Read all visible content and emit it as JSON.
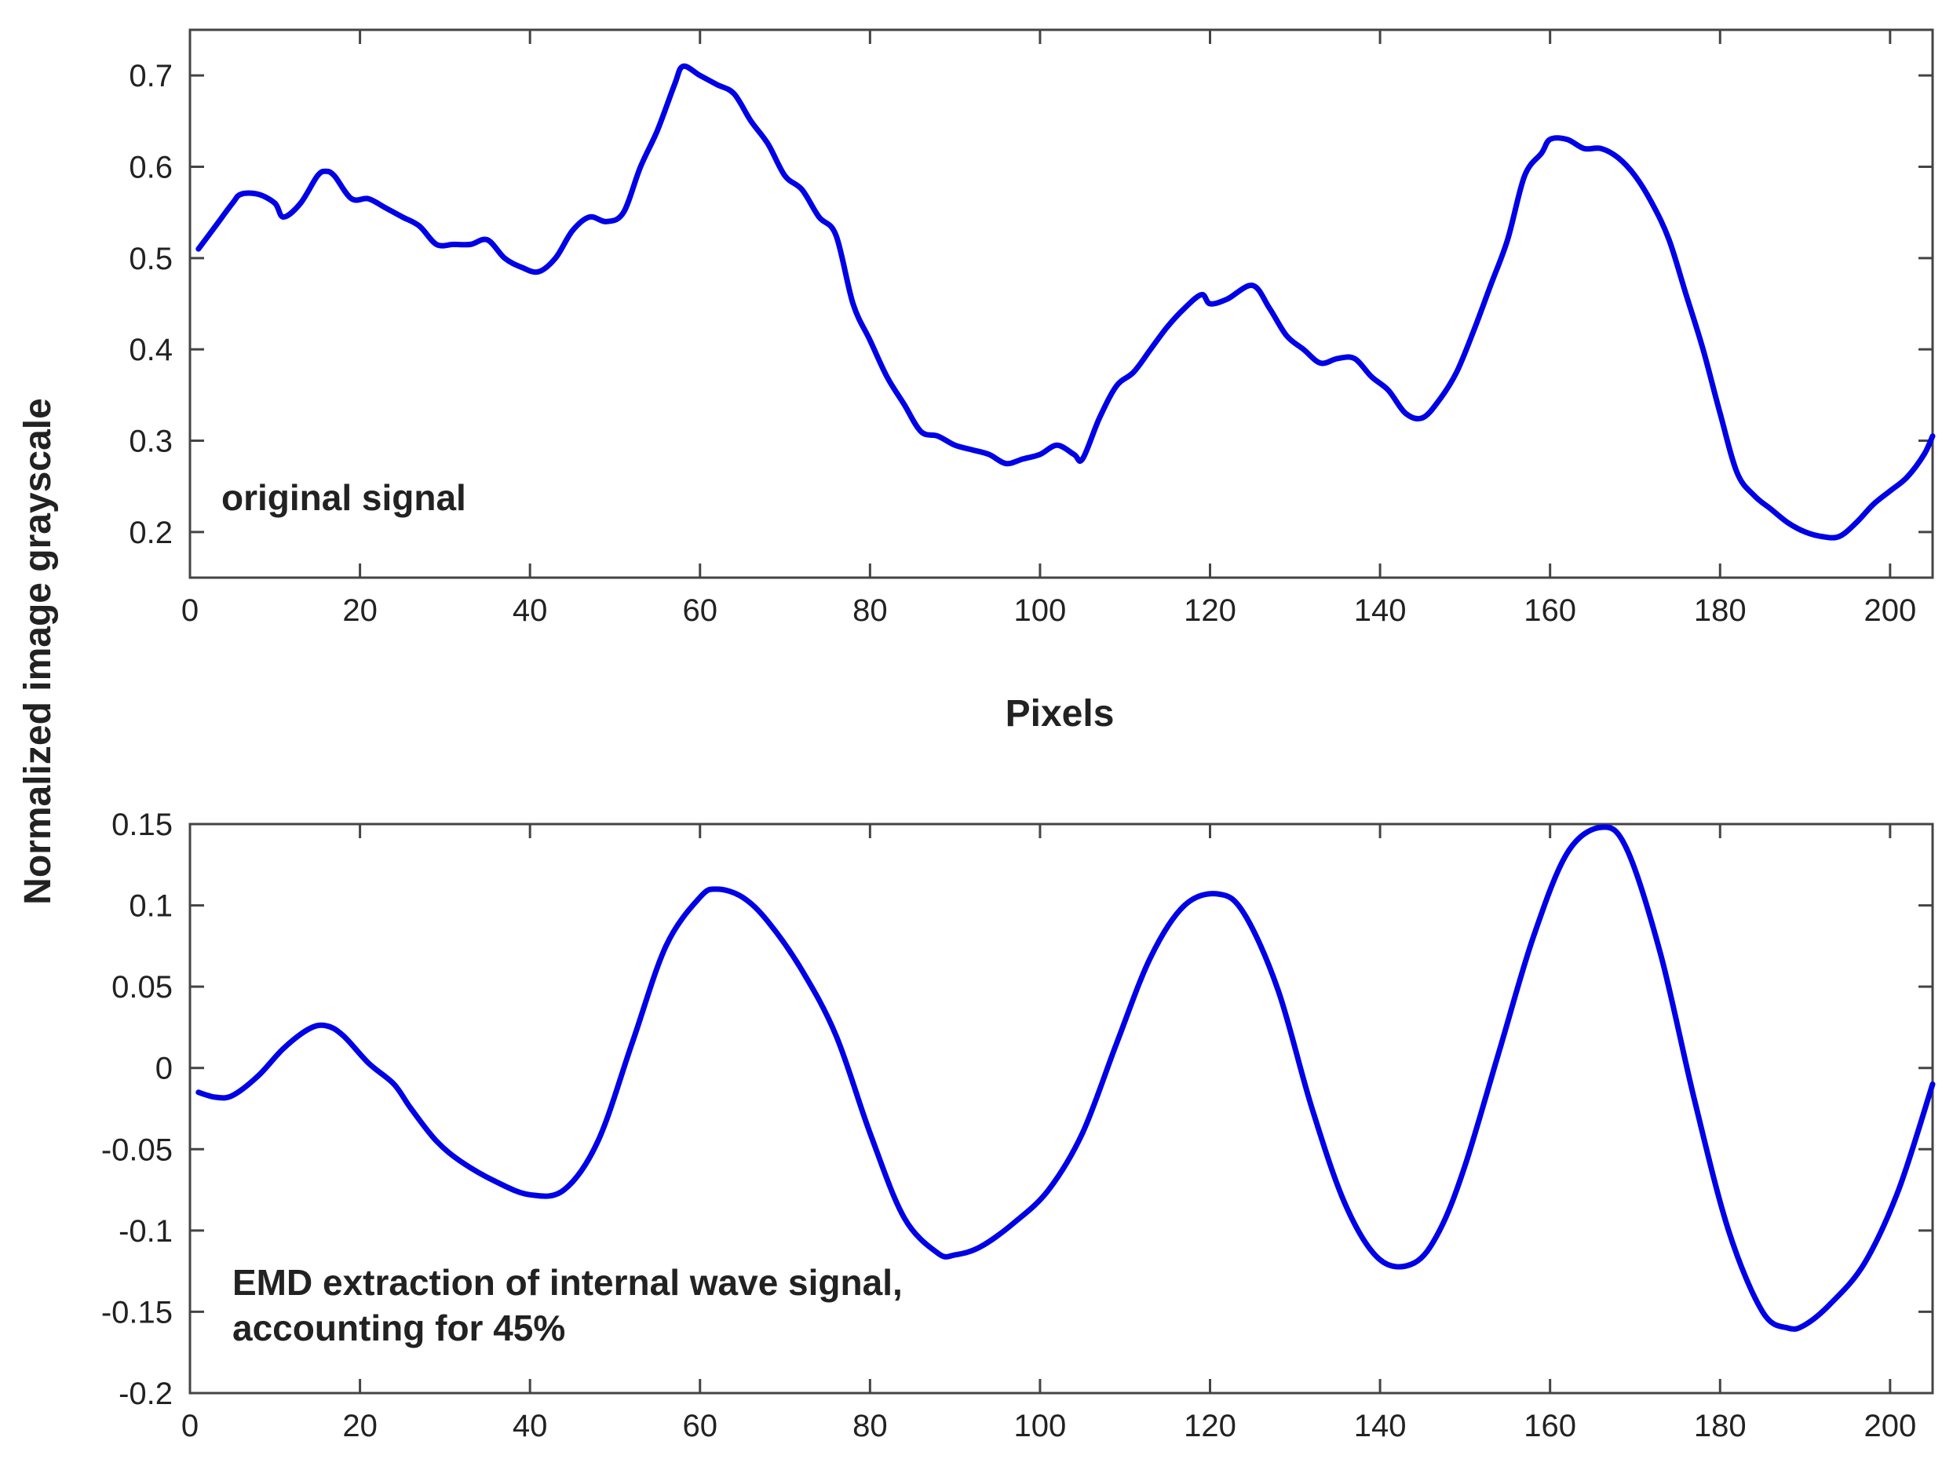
{
  "figure": {
    "ylabel": "Normalized image grayscale",
    "xlabel": "Pixels",
    "line_color": "#0000e6",
    "axis_color": "#444444"
  },
  "chart_data": [
    {
      "type": "line",
      "annotation": [
        "original signal"
      ],
      "xlim": [
        0,
        205
      ],
      "ylim": [
        0.15,
        0.75
      ],
      "xticks": [
        0,
        20,
        40,
        60,
        80,
        100,
        120,
        140,
        160,
        180,
        200
      ],
      "yticks": [
        0.2,
        0.3,
        0.4,
        0.5,
        0.6,
        0.7
      ],
      "ytick_labels": [
        "0.2",
        "0.3",
        "0.4",
        "0.5",
        "0.6",
        "0.7"
      ],
      "x": [
        1,
        3,
        5,
        6,
        8,
        10,
        11,
        13,
        15,
        16,
        17,
        19,
        21,
        23,
        25,
        27,
        29,
        31,
        33,
        35,
        37,
        39,
        41,
        43,
        45,
        47,
        49,
        51,
        53,
        55,
        57,
        58,
        60,
        62,
        64,
        66,
        68,
        70,
        72,
        74,
        76,
        78,
        80,
        82,
        84,
        86,
        88,
        90,
        92,
        94,
        96,
        98,
        100,
        102,
        104,
        105,
        107,
        109,
        111,
        113,
        115,
        117,
        119,
        120,
        122,
        125,
        127,
        129,
        131,
        133,
        135,
        137,
        139,
        141,
        143,
        145,
        147,
        149,
        151,
        153,
        155,
        157,
        159,
        160,
        162,
        164,
        166,
        168,
        170,
        172,
        174,
        176,
        178,
        180,
        182,
        184,
        186,
        188,
        190,
        192,
        194,
        196,
        198,
        200,
        202,
        204,
        205
      ],
      "y": [
        0.51,
        0.535,
        0.56,
        0.57,
        0.57,
        0.56,
        0.545,
        0.56,
        0.59,
        0.595,
        0.59,
        0.565,
        0.565,
        0.555,
        0.545,
        0.535,
        0.515,
        0.515,
        0.515,
        0.52,
        0.5,
        0.49,
        0.485,
        0.5,
        0.53,
        0.545,
        0.54,
        0.55,
        0.6,
        0.64,
        0.69,
        0.71,
        0.7,
        0.69,
        0.68,
        0.65,
        0.625,
        0.59,
        0.575,
        0.545,
        0.525,
        0.45,
        0.41,
        0.37,
        0.34,
        0.31,
        0.305,
        0.295,
        0.29,
        0.285,
        0.275,
        0.28,
        0.285,
        0.295,
        0.285,
        0.28,
        0.325,
        0.36,
        0.375,
        0.4,
        0.425,
        0.445,
        0.46,
        0.45,
        0.455,
        0.47,
        0.445,
        0.415,
        0.4,
        0.385,
        0.39,
        0.39,
        0.37,
        0.355,
        0.33,
        0.325,
        0.345,
        0.375,
        0.42,
        0.47,
        0.52,
        0.59,
        0.615,
        0.63,
        0.63,
        0.62,
        0.62,
        0.61,
        0.59,
        0.56,
        0.52,
        0.46,
        0.4,
        0.33,
        0.265,
        0.24,
        0.225,
        0.21,
        0.2,
        0.195,
        0.195,
        0.21,
        0.23,
        0.245,
        0.26,
        0.285,
        0.305
      ]
    },
    {
      "type": "line",
      "annotation": [
        "EMD extraction of internal wave signal,",
        "accounting for 45%"
      ],
      "xlim": [
        0,
        205
      ],
      "ylim": [
        -0.2,
        0.15
      ],
      "xticks": [
        0,
        20,
        40,
        60,
        80,
        100,
        120,
        140,
        160,
        180,
        200
      ],
      "yticks": [
        -0.2,
        -0.15,
        -0.1,
        -0.05,
        0,
        0.05,
        0.1,
        0.15
      ],
      "ytick_labels": [
        "-0.2",
        "-0.15",
        "-0.1",
        "-0.05",
        "0",
        "0.05",
        "0.1",
        "0.15"
      ],
      "x": [
        1,
        3,
        5,
        8,
        11,
        14,
        16,
        18,
        21,
        24,
        26,
        29,
        32,
        36,
        40,
        44,
        48,
        52,
        56,
        60,
        62,
        65,
        68,
        72,
        76,
        80,
        84,
        88,
        90,
        93,
        97,
        101,
        105,
        109,
        113,
        117,
        121,
        124,
        128,
        132,
        136,
        140,
        144,
        147,
        150,
        154,
        158,
        162,
        166,
        169,
        173,
        177,
        181,
        185,
        188,
        190,
        193,
        197,
        201,
        205
      ],
      "y": [
        -0.015,
        -0.018,
        -0.017,
        -0.005,
        0.012,
        0.024,
        0.026,
        0.02,
        0.003,
        -0.01,
        -0.025,
        -0.045,
        -0.058,
        -0.07,
        -0.078,
        -0.075,
        -0.045,
        0.015,
        0.075,
        0.105,
        0.11,
        0.105,
        0.09,
        0.06,
        0.02,
        -0.04,
        -0.092,
        -0.114,
        -0.115,
        -0.11,
        -0.095,
        -0.075,
        -0.04,
        0.015,
        0.068,
        0.1,
        0.107,
        0.095,
        0.048,
        -0.025,
        -0.085,
        -0.118,
        -0.12,
        -0.1,
        -0.06,
        0.01,
        0.08,
        0.132,
        0.148,
        0.135,
        0.07,
        -0.02,
        -0.1,
        -0.15,
        -0.16,
        -0.158,
        -0.145,
        -0.12,
        -0.075,
        -0.01
      ]
    }
  ]
}
